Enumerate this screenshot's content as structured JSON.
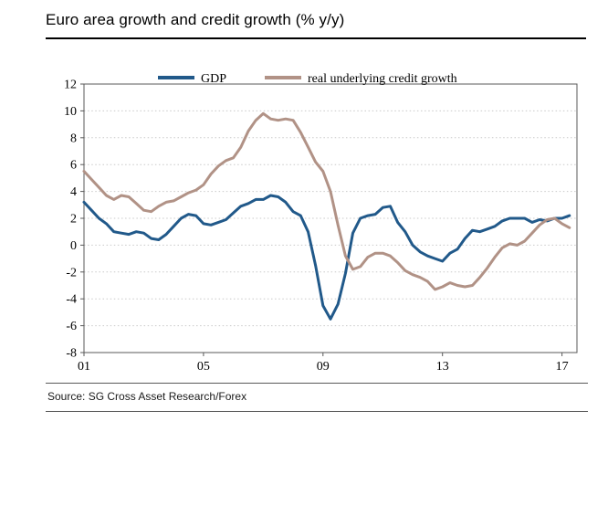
{
  "window": {
    "title": "Euro area growth and credit growth (% y/y)"
  },
  "source_note": "Source: SG Cross Asset Research/Forex",
  "colors": {
    "gdp_line": "#21598A",
    "credit_line": "#B19286",
    "grid": "#C9C9C9",
    "axis": "#595959"
  },
  "chart_data": {
    "type": "line",
    "title": "Euro area growth and credit growth (% y/y)",
    "xlabel": "",
    "ylabel": "",
    "xlim": [
      2001,
      2017.5
    ],
    "ylim": [
      -8,
      12
    ],
    "y_ticks": [
      12,
      10,
      8,
      6,
      4,
      2,
      0,
      -2,
      -4,
      -6,
      -8
    ],
    "x_ticks": [
      {
        "value": 2001,
        "label": "01"
      },
      {
        "value": 2005,
        "label": "05"
      },
      {
        "value": 2009,
        "label": "09"
      },
      {
        "value": 2013,
        "label": "13"
      },
      {
        "value": 2017,
        "label": "17"
      }
    ],
    "grid": {
      "horizontal": true,
      "style": "dotted"
    },
    "legend_position": "top",
    "x": {
      "start": 2001,
      "step": 0.25,
      "unit": "year"
    },
    "series": [
      {
        "name": "GDP",
        "color": "#21598A",
        "values": [
          3.2,
          2.6,
          2.0,
          1.6,
          1.0,
          0.9,
          0.8,
          1.0,
          0.9,
          0.5,
          0.4,
          0.8,
          1.4,
          2.0,
          2.3,
          2.2,
          1.6,
          1.5,
          1.7,
          1.9,
          2.4,
          2.9,
          3.1,
          3.4,
          3.4,
          3.7,
          3.6,
          3.2,
          2.5,
          2.2,
          1.0,
          -1.5,
          -4.5,
          -5.5,
          -4.4,
          -2.1,
          0.9,
          2.0,
          2.2,
          2.3,
          2.8,
          2.9,
          1.7,
          1.0,
          0.0,
          -0.5,
          -0.8,
          -1.0,
          -1.2,
          -0.6,
          -0.3,
          0.5,
          1.1,
          1.0,
          1.2,
          1.4,
          1.8,
          2.0,
          2.0,
          2.0,
          1.7,
          1.9,
          1.8,
          2.0,
          2.0,
          2.2
        ]
      },
      {
        "name": "real underlying credit growth",
        "color": "#B19286",
        "values": [
          5.5,
          4.9,
          4.3,
          3.7,
          3.4,
          3.7,
          3.6,
          3.1,
          2.6,
          2.5,
          2.9,
          3.2,
          3.3,
          3.6,
          3.9,
          4.1,
          4.5,
          5.3,
          5.9,
          6.3,
          6.5,
          7.3,
          8.5,
          9.3,
          9.8,
          9.4,
          9.3,
          9.4,
          9.3,
          8.4,
          7.3,
          6.2,
          5.5,
          4.0,
          1.5,
          -0.8,
          -1.8,
          -1.6,
          -0.9,
          -0.6,
          -0.6,
          -0.8,
          -1.3,
          -1.9,
          -2.2,
          -2.4,
          -2.7,
          -3.3,
          -3.1,
          -2.8,
          -3.0,
          -3.1,
          -3.0,
          -2.4,
          -1.7,
          -0.9,
          -0.2,
          0.1,
          0.0,
          0.3,
          0.9,
          1.5,
          1.9,
          2.0,
          1.6,
          1.3
        ]
      }
    ]
  }
}
